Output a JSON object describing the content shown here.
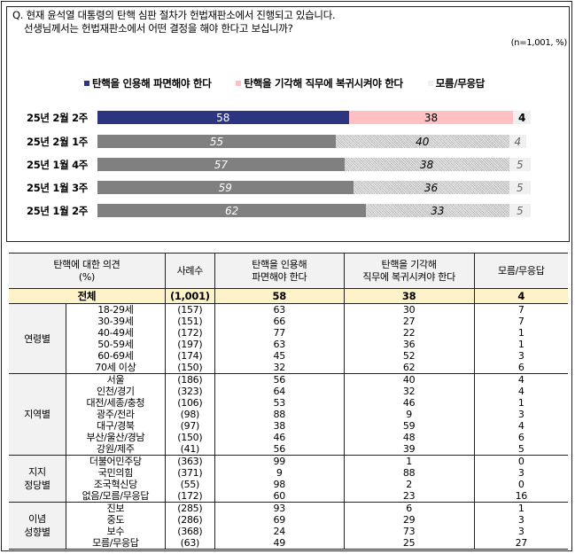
{
  "question": {
    "line1": "Q. 현재 윤석열 대통령의 탄핵 심판 절차가 헌법재판소에서 진행되고 있습니다.",
    "line2": "선생님께서는 헌법재판소에서 어떤 결정을 해야 한다고 보십니까?",
    "sample_note": "(n=1,001,  %)"
  },
  "legend": [
    {
      "label": "탄핵을 인용해 파면해야 한다",
      "color": "#2e3580"
    },
    {
      "label": "탄핵을 기각해 직무에 복귀시켜야 한다",
      "color": "#ffc0c4"
    },
    {
      "label": "모름/무응답",
      "color": "#f0f0f0"
    }
  ],
  "chart_data": {
    "type": "bar",
    "orientation": "horizontal",
    "stacked": true,
    "title": "Q. 현재 윤석열 대통령의 탄핵 심판 절차가 헌법재판소에서 진행되고 있습니다. 선생님께서는 헌법재판소에서 어떤 결정을 해야 한다고 보십니까?",
    "note": "(n=1,001, %)",
    "categories": [
      "25년 2월 2주",
      "25년 2월 1주",
      "25년 1월 4주",
      "25년 1월 3주",
      "25년 1월 2주"
    ],
    "series": [
      {
        "name": "탄핵을 인용해 파면해야 한다",
        "values": [
          58,
          55,
          57,
          59,
          62
        ]
      },
      {
        "name": "탄핵을 기각해 직무에 복귀시켜야 한다",
        "values": [
          38,
          40,
          38,
          36,
          33
        ]
      },
      {
        "name": "모름/무응답",
        "values": [
          4,
          4,
          5,
          5,
          5
        ]
      }
    ],
    "xlim": [
      0,
      100
    ],
    "grid": false,
    "legend_position": "top"
  },
  "chart_rows": [
    {
      "label": "25년 2월 2주",
      "a": 58,
      "b": 38,
      "c": 4,
      "a_txt": "58",
      "b_txt": "38",
      "c_txt": "4"
    },
    {
      "label": "25년 2월 1주",
      "a": 55,
      "b": 40,
      "c": 4,
      "a_txt": "55",
      "b_txt": "40",
      "c_txt": "4"
    },
    {
      "label": "25년 1월 4주",
      "a": 57,
      "b": 38,
      "c": 5,
      "a_txt": "57",
      "b_txt": "38",
      "c_txt": "5"
    },
    {
      "label": "25년 1월 3주",
      "a": 59,
      "b": 36,
      "c": 5,
      "a_txt": "59",
      "b_txt": "36",
      "c_txt": "5"
    },
    {
      "label": "25년 1월 2주",
      "a": 62,
      "b": 33,
      "c": 5,
      "a_txt": "62",
      "b_txt": "33",
      "c_txt": "5"
    }
  ],
  "table": {
    "headers": {
      "opinion": "탄핵에 대한 의견",
      "opinion_unit": "(%)",
      "sample": "사례수",
      "approve_l1": "탄핵을 인용해",
      "approve_l2": "파면해야 한다",
      "reject_l1": "탄핵을 기각해",
      "reject_l2": "직무에 복귀시켜야 한다",
      "dk": "모름/무응답"
    },
    "total": {
      "label": "전체",
      "n": "(1,001)",
      "approve": "58",
      "reject": "38",
      "dk": "4"
    },
    "groups": [
      {
        "name_l1": "연령별",
        "name_l2": "",
        "rows": [
          {
            "label": "18-29세",
            "n": "(157)",
            "approve": "63",
            "reject": "30",
            "dk": "7"
          },
          {
            "label": "30-39세",
            "n": "(151)",
            "approve": "66",
            "reject": "27",
            "dk": "7"
          },
          {
            "label": "40-49세",
            "n": "(172)",
            "approve": "77",
            "reject": "22",
            "dk": "1"
          },
          {
            "label": "50-59세",
            "n": "(197)",
            "approve": "63",
            "reject": "36",
            "dk": "1"
          },
          {
            "label": "60-69세",
            "n": "(174)",
            "approve": "45",
            "reject": "52",
            "dk": "3"
          },
          {
            "label": "70세 이상",
            "n": "(150)",
            "approve": "32",
            "reject": "62",
            "dk": "6"
          }
        ]
      },
      {
        "name_l1": "지역별",
        "name_l2": "",
        "rows": [
          {
            "label": "서울",
            "n": "(186)",
            "approve": "56",
            "reject": "40",
            "dk": "4"
          },
          {
            "label": "인천/경기",
            "n": "(323)",
            "approve": "64",
            "reject": "32",
            "dk": "4"
          },
          {
            "label": "대전/세종/충청",
            "n": "(106)",
            "approve": "53",
            "reject": "46",
            "dk": "1"
          },
          {
            "label": "광주/전라",
            "n": "(98)",
            "approve": "88",
            "reject": "9",
            "dk": "3"
          },
          {
            "label": "대구/경북",
            "n": "(97)",
            "approve": "38",
            "reject": "59",
            "dk": "4"
          },
          {
            "label": "부산/울산/경남",
            "n": "(150)",
            "approve": "46",
            "reject": "48",
            "dk": "6"
          },
          {
            "label": "강원/제주",
            "n": "(41)",
            "approve": "56",
            "reject": "39",
            "dk": "5"
          }
        ]
      },
      {
        "name_l1": "지지",
        "name_l2": "정당별",
        "rows": [
          {
            "label": "더불어민주당",
            "n": "(363)",
            "approve": "99",
            "reject": "1",
            "dk": "0"
          },
          {
            "label": "국민의힘",
            "n": "(371)",
            "approve": "9",
            "reject": "88",
            "dk": "3"
          },
          {
            "label": "조국혁신당",
            "n": "(55)",
            "approve": "98",
            "reject": "2",
            "dk": "0"
          },
          {
            "label": "없음/모름/무응답",
            "n": "(172)",
            "approve": "60",
            "reject": "23",
            "dk": "16"
          }
        ]
      },
      {
        "name_l1": "이념",
        "name_l2": "성향별",
        "rows": [
          {
            "label": "진보",
            "n": "(285)",
            "approve": "93",
            "reject": "6",
            "dk": "1"
          },
          {
            "label": "중도",
            "n": "(286)",
            "approve": "69",
            "reject": "29",
            "dk": "3"
          },
          {
            "label": "보수",
            "n": "(368)",
            "approve": "24",
            "reject": "73",
            "dk": "3"
          },
          {
            "label": "모름/무응답",
            "n": "(63)",
            "approve": "49",
            "reject": "25",
            "dk": "27"
          }
        ]
      }
    ]
  }
}
